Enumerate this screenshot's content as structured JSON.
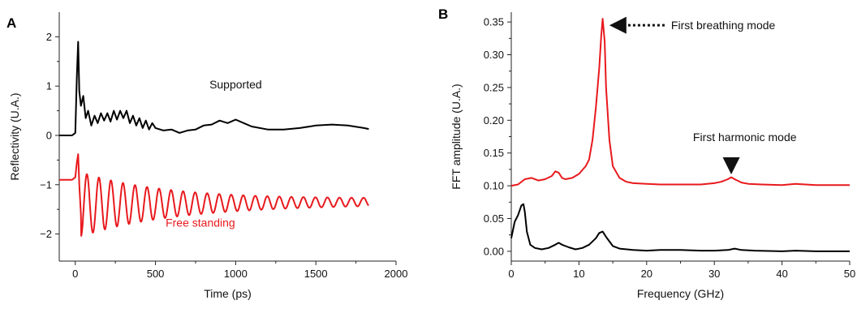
{
  "colors": {
    "black_series": "#000000",
    "red_series": "#e8191d",
    "axis": "#222222",
    "arrow": "#111111"
  },
  "chart_data": [
    {
      "panel": "A",
      "type": "line",
      "xlabel": "Time (ps)",
      "ylabel": "Reflectivity (U.A.)",
      "xlim": [
        -100,
        2000
      ],
      "ylim": [
        -2.55,
        2.5
      ],
      "xticks": [
        0,
        500,
        1000,
        1500,
        2000
      ],
      "xtick_labels": [
        "0",
        "500",
        "1000",
        "1500",
        "2000"
      ],
      "yticks": [
        -2,
        -1,
        0,
        1,
        2
      ],
      "ytick_labels": [
        "−2",
        "−1",
        "0",
        "1",
        "2"
      ],
      "grid": false,
      "series": [
        {
          "name": "Supported",
          "color": "#000000",
          "x": [
            -100,
            -20,
            0,
            10,
            18,
            25,
            35,
            50,
            65,
            80,
            100,
            120,
            140,
            160,
            180,
            200,
            220,
            240,
            260,
            280,
            300,
            320,
            340,
            360,
            380,
            400,
            420,
            440,
            460,
            480,
            500,
            550,
            600,
            650,
            700,
            750,
            800,
            850,
            900,
            950,
            1000,
            1050,
            1100,
            1200,
            1300,
            1400,
            1500,
            1600,
            1700,
            1800,
            1830
          ],
          "y": [
            0.0,
            0.0,
            0.05,
            1.2,
            1.9,
            0.9,
            0.6,
            0.8,
            0.35,
            0.5,
            0.2,
            0.4,
            0.25,
            0.45,
            0.3,
            0.45,
            0.28,
            0.5,
            0.32,
            0.5,
            0.35,
            0.5,
            0.25,
            0.4,
            0.2,
            0.35,
            0.15,
            0.3,
            0.12,
            0.25,
            0.15,
            0.1,
            0.12,
            0.05,
            0.1,
            0.12,
            0.2,
            0.22,
            0.3,
            0.25,
            0.32,
            0.25,
            0.18,
            0.12,
            0.12,
            0.15,
            0.2,
            0.22,
            0.2,
            0.15,
            0.13
          ]
        },
        {
          "name": "Free standing",
          "color": "#e8191d",
          "x": [
            -100,
            -20,
            0,
            10,
            18,
            25,
            35
          ],
          "y": [
            -0.9,
            -0.9,
            -0.85,
            -0.55,
            -0.38,
            -1.0,
            -1.6
          ]
        }
      ],
      "free_standing_oscillation": {
        "start": 35,
        "end": 1830,
        "period_ps": 75,
        "baseline_start": -1.4,
        "baseline_end": -1.35,
        "amplitude_start": 0.65,
        "amplitude_end": 0.06
      },
      "annotations": [
        {
          "text": "Supported",
          "x": 1000,
          "y": 0.95,
          "color": "#111111"
        },
        {
          "text": "Free standing",
          "x": 780,
          "y": -1.85,
          "color": "#e8191d"
        }
      ]
    },
    {
      "panel": "B",
      "type": "line",
      "xlabel": "Frequency (GHz)",
      "ylabel": "FFT amplitude (U.A.)",
      "xlim": [
        0,
        50
      ],
      "ylim": [
        -0.015,
        0.365
      ],
      "xticks": [
        0,
        10,
        20,
        30,
        40,
        50
      ],
      "xtick_labels": [
        "0",
        "10",
        "20",
        "30",
        "40",
        "50"
      ],
      "yticks": [
        0.0,
        0.05,
        0.1,
        0.15,
        0.2,
        0.25,
        0.3,
        0.35
      ],
      "ytick_labels": [
        "0.00",
        "0.05",
        "0.10",
        "0.15",
        "0.20",
        "0.25",
        "0.30",
        "0.35"
      ],
      "grid": false,
      "series": [
        {
          "color": "#e8191d",
          "x": [
            0,
            1,
            2,
            3,
            4,
            5,
            6,
            6.5,
            7,
            7.5,
            8,
            9,
            10,
            11,
            11.5,
            12,
            12.5,
            13,
            13.3,
            13.5,
            13.8,
            14,
            14.5,
            15,
            16,
            17,
            18,
            20,
            22,
            25,
            28,
            30,
            31,
            32,
            32.5,
            33,
            34,
            35,
            37,
            40,
            42,
            45,
            48,
            50
          ],
          "y": [
            0.1,
            0.102,
            0.11,
            0.112,
            0.108,
            0.11,
            0.115,
            0.122,
            0.12,
            0.112,
            0.11,
            0.112,
            0.118,
            0.13,
            0.14,
            0.17,
            0.22,
            0.28,
            0.33,
            0.355,
            0.32,
            0.25,
            0.17,
            0.13,
            0.112,
            0.106,
            0.104,
            0.103,
            0.102,
            0.102,
            0.102,
            0.104,
            0.106,
            0.11,
            0.113,
            0.11,
            0.105,
            0.103,
            0.102,
            0.101,
            0.103,
            0.101,
            0.101,
            0.101
          ]
        },
        {
          "color": "#000000",
          "x": [
            0,
            0.5,
            1,
            1.5,
            1.8,
            2,
            2.3,
            2.8,
            3.5,
            4.5,
            5.5,
            6.5,
            7,
            7.5,
            8.5,
            9.5,
            10.5,
            11.5,
            12.5,
            13,
            13.5,
            14,
            15,
            16,
            18,
            20,
            22,
            25,
            28,
            30,
            32,
            33,
            34,
            36,
            40,
            42,
            45,
            48,
            50
          ],
          "y": [
            0.02,
            0.045,
            0.055,
            0.07,
            0.072,
            0.06,
            0.03,
            0.01,
            0.005,
            0.003,
            0.005,
            0.01,
            0.013,
            0.01,
            0.006,
            0.003,
            0.005,
            0.01,
            0.02,
            0.028,
            0.03,
            0.022,
            0.008,
            0.004,
            0.002,
            0.001,
            0.002,
            0.002,
            0.001,
            0.001,
            0.002,
            0.004,
            0.002,
            0.001,
            0.0,
            0.001,
            0.0,
            0.0,
            0.0
          ]
        }
      ],
      "annotations": [
        {
          "text": "First breathing mode",
          "x": 14.5,
          "y": 0.345,
          "arrow": "left",
          "color": "#111111"
        },
        {
          "text": "First harmonic mode",
          "x": 34.5,
          "y": 0.168,
          "arrow": "down",
          "color": "#111111"
        }
      ]
    }
  ]
}
